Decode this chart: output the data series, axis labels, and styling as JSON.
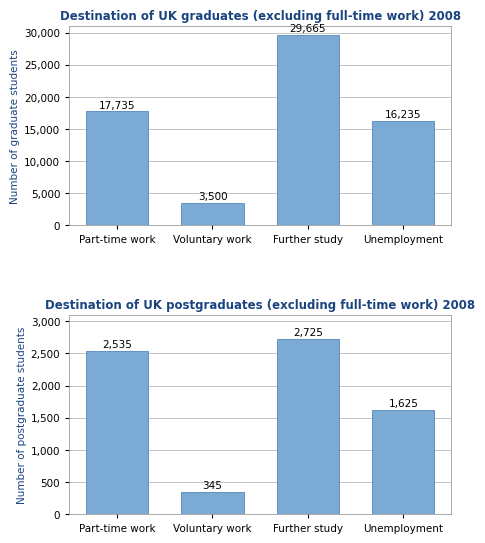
{
  "chart1": {
    "title": "Destination of UK graduates (excluding full-time work) 2008",
    "categories": [
      "Part-time work",
      "Voluntary work",
      "Further study",
      "Unemployment"
    ],
    "values": [
      17735,
      3500,
      29665,
      16235
    ],
    "labels": [
      "17,735",
      "3,500",
      "29,665",
      "16,235"
    ],
    "ylabel": "Number of graduate students",
    "ylim": [
      0,
      31000
    ],
    "yticks": [
      0,
      5000,
      10000,
      15000,
      20000,
      25000,
      30000
    ],
    "ytick_labels": [
      "0",
      "5,000",
      "10,000",
      "15,000",
      "20,000",
      "25,000",
      "30,000"
    ]
  },
  "chart2": {
    "title": "Destination of UK postgraduates (excluding full-time work) 2008",
    "categories": [
      "Part-time work",
      "Voluntary work",
      "Further study",
      "Unemployment"
    ],
    "values": [
      2535,
      345,
      2725,
      1625
    ],
    "labels": [
      "2,535",
      "345",
      "2,725",
      "1,625"
    ],
    "ylabel": "Number of postgraduate students",
    "ylim": [
      0,
      3100
    ],
    "yticks": [
      0,
      500,
      1000,
      1500,
      2000,
      2500,
      3000
    ],
    "ytick_labels": [
      "0",
      "500",
      "1,000",
      "1,500",
      "2,000",
      "2,500",
      "3,000"
    ]
  },
  "bar_color": "#7baad4",
  "bar_edge_color": "#5588bb",
  "title_color": "#1a4480",
  "ylabel_color": "#1a4480",
  "background_color": "#ffffff",
  "title_fontsize": 8.5,
  "label_fontsize": 7.5,
  "ylabel_fontsize": 7.5,
  "xlabel_fontsize": 7.5,
  "bar_width": 0.65
}
